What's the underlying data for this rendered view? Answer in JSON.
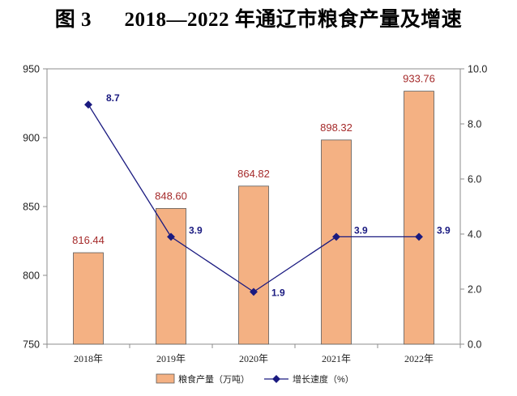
{
  "title": "图 3      2018—2022 年通辽市粮食产量及增速",
  "chart_data": {
    "type": "bar",
    "categories": [
      "2018年",
      "2019年",
      "2020年",
      "2021年",
      "2022年"
    ],
    "series": [
      {
        "name": "粮食产量（万吨）",
        "type": "bar",
        "axis": "left",
        "values": [
          816.44,
          848.6,
          864.82,
          898.32,
          933.76
        ],
        "labels": [
          "816.44",
          "848.60",
          "864.82",
          "898.32",
          "933.76"
        ],
        "color": "#f4b183"
      },
      {
        "name": "增长速度（%）",
        "type": "line",
        "axis": "right",
        "values": [
          8.7,
          3.9,
          1.9,
          3.9,
          3.9
        ],
        "labels": [
          "8.7",
          "3.9",
          "1.9",
          "3.9",
          "3.9"
        ],
        "color": "#1a1a80"
      }
    ],
    "y_left": {
      "min": 750,
      "max": 950,
      "ticks": [
        "750",
        "800",
        "850",
        "900",
        "950"
      ]
    },
    "y_right": {
      "min": 0,
      "max": 10,
      "ticks": [
        "0.0",
        "2.0",
        "4.0",
        "6.0",
        "8.0",
        "10.0"
      ]
    },
    "grid": false,
    "legend_position": "bottom-center"
  }
}
